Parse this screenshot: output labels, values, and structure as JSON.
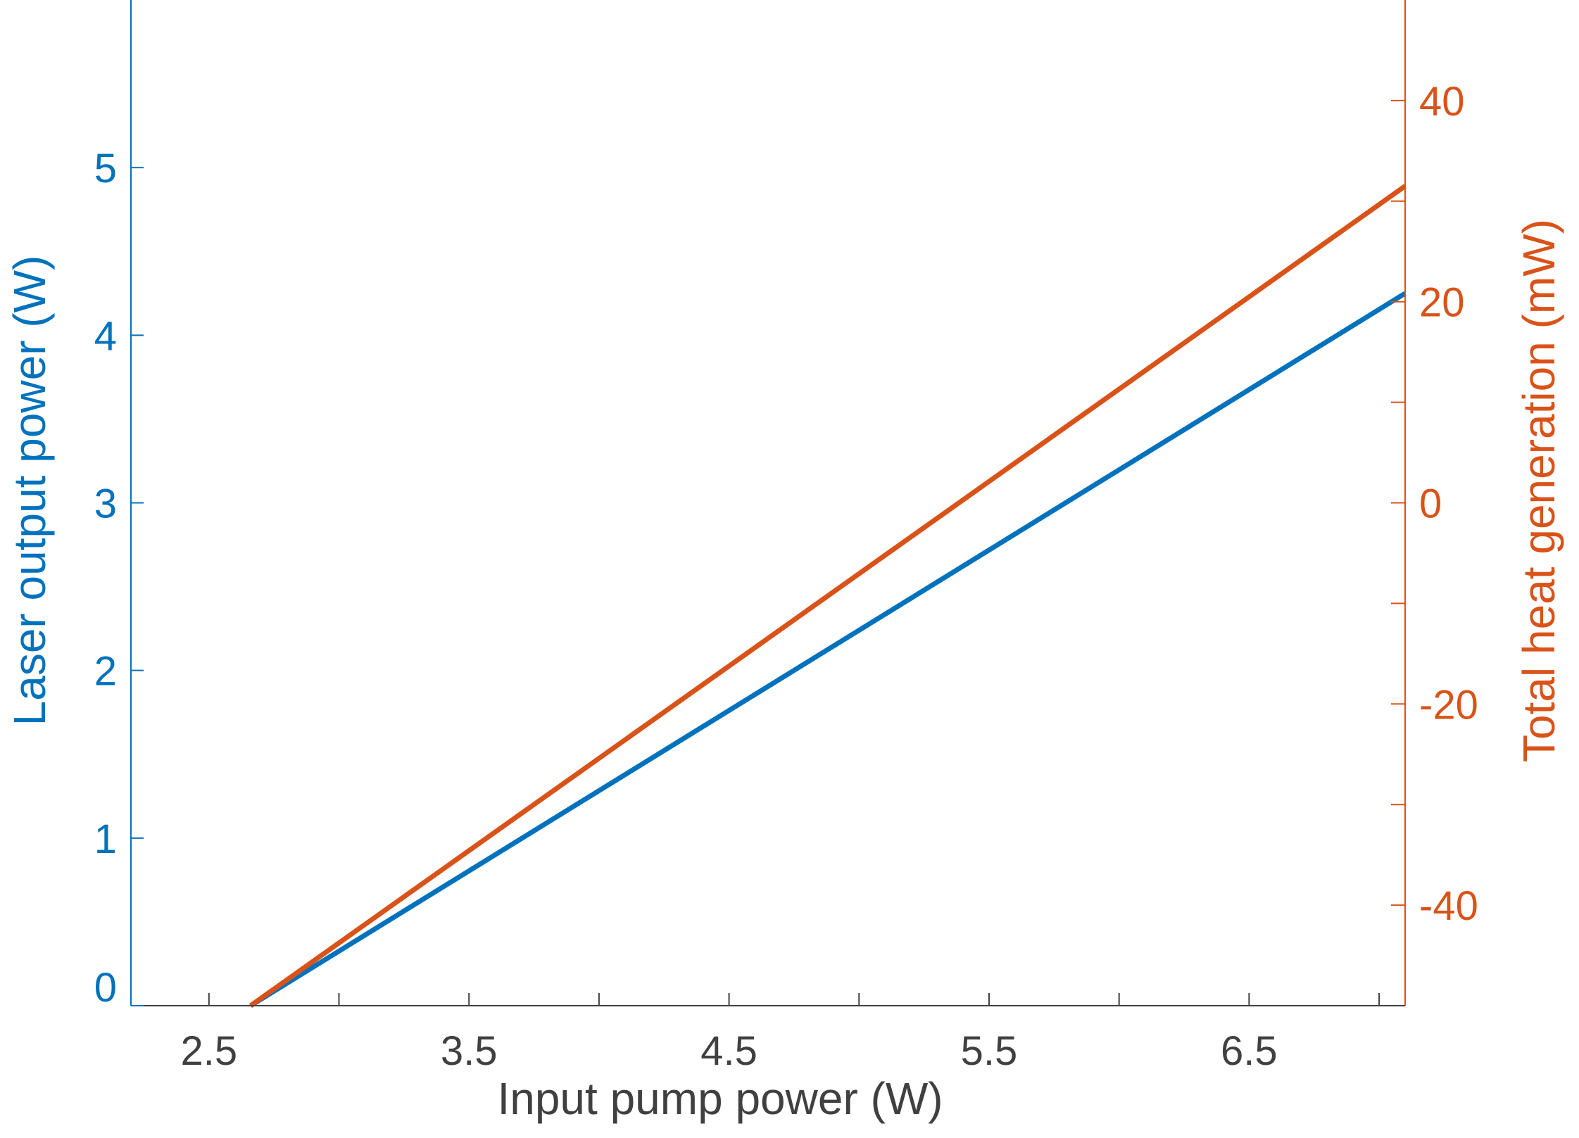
{
  "chart_data": {
    "type": "line",
    "xlabel": "Input pump power (W)",
    "ylabel_left": "Laser output power (W)",
    "ylabel_right": "Total heat generation (mW)",
    "xlim": [
      2.2,
      7.1
    ],
    "ylim_left": [
      0,
      6.0
    ],
    "ylim_right": [
      -50,
      50
    ],
    "xticks": [
      2.5,
      3.0,
      3.5,
      4.0,
      4.5,
      5.0,
      5.5,
      6.0,
      6.5,
      7.0
    ],
    "xtick_labels": [
      "2.5",
      "",
      "3.5",
      "",
      "4.5",
      "",
      "5.5",
      "",
      "6.5",
      ""
    ],
    "yticks_left": [
      0,
      1,
      2,
      3,
      4,
      5
    ],
    "ytick_labels_left": [
      "0",
      "1",
      "2",
      "3",
      "4",
      "5"
    ],
    "yticks_right": [
      -40,
      -30,
      -20,
      -10,
      0,
      10,
      20,
      30,
      40
    ],
    "ytick_labels_right": [
      "-40",
      "",
      "-20",
      "",
      "0",
      "",
      "20",
      "",
      "40"
    ],
    "grid": false,
    "colors": {
      "left": "#0072BD",
      "right": "#D95319",
      "axis": "#404040"
    },
    "series": [
      {
        "axis": "left",
        "x": [
          2.66,
          7.1
        ],
        "y": [
          0,
          4.25
        ]
      },
      {
        "axis": "right",
        "x": [
          2.66,
          7.1
        ],
        "y": [
          -50,
          31.5
        ]
      }
    ]
  }
}
